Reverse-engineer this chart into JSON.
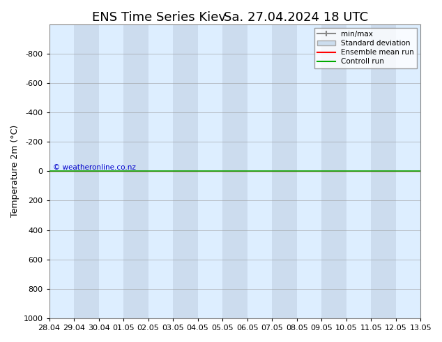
{
  "title": "ENS Time Series Kiev",
  "title2": "Sa. 27.04.2024 18 UTC",
  "ylabel": "Temperature 2m (°C)",
  "ylim": [
    -1000,
    1000
  ],
  "yticks": [
    -800,
    -600,
    -400,
    -200,
    0,
    200,
    400,
    600,
    800,
    1000
  ],
  "xtick_labels": [
    "28.04",
    "29.04",
    "30.04",
    "01.05",
    "02.05",
    "03.05",
    "04.05",
    "05.05",
    "06.05",
    "07.05",
    "08.05",
    "09.05",
    "10.05",
    "11.05",
    "12.05",
    "13.05"
  ],
  "bg_color": "#ffffff",
  "plot_bg_color": "#ccdcee",
  "alt_col_color": "#ddeeff",
  "copyright_text": "© weatheronline.co.nz",
  "copyright_color": "#0000cc",
  "legend_items": [
    "min/max",
    "Standard deviation",
    "Ensemble mean run",
    "Controll run"
  ],
  "minmax_color": "#888888",
  "std_color": "#ccddee",
  "ensemble_color": "#ff0000",
  "control_color": "#00aa00",
  "title_fontsize": 13,
  "axis_fontsize": 9,
  "tick_fontsize": 8
}
